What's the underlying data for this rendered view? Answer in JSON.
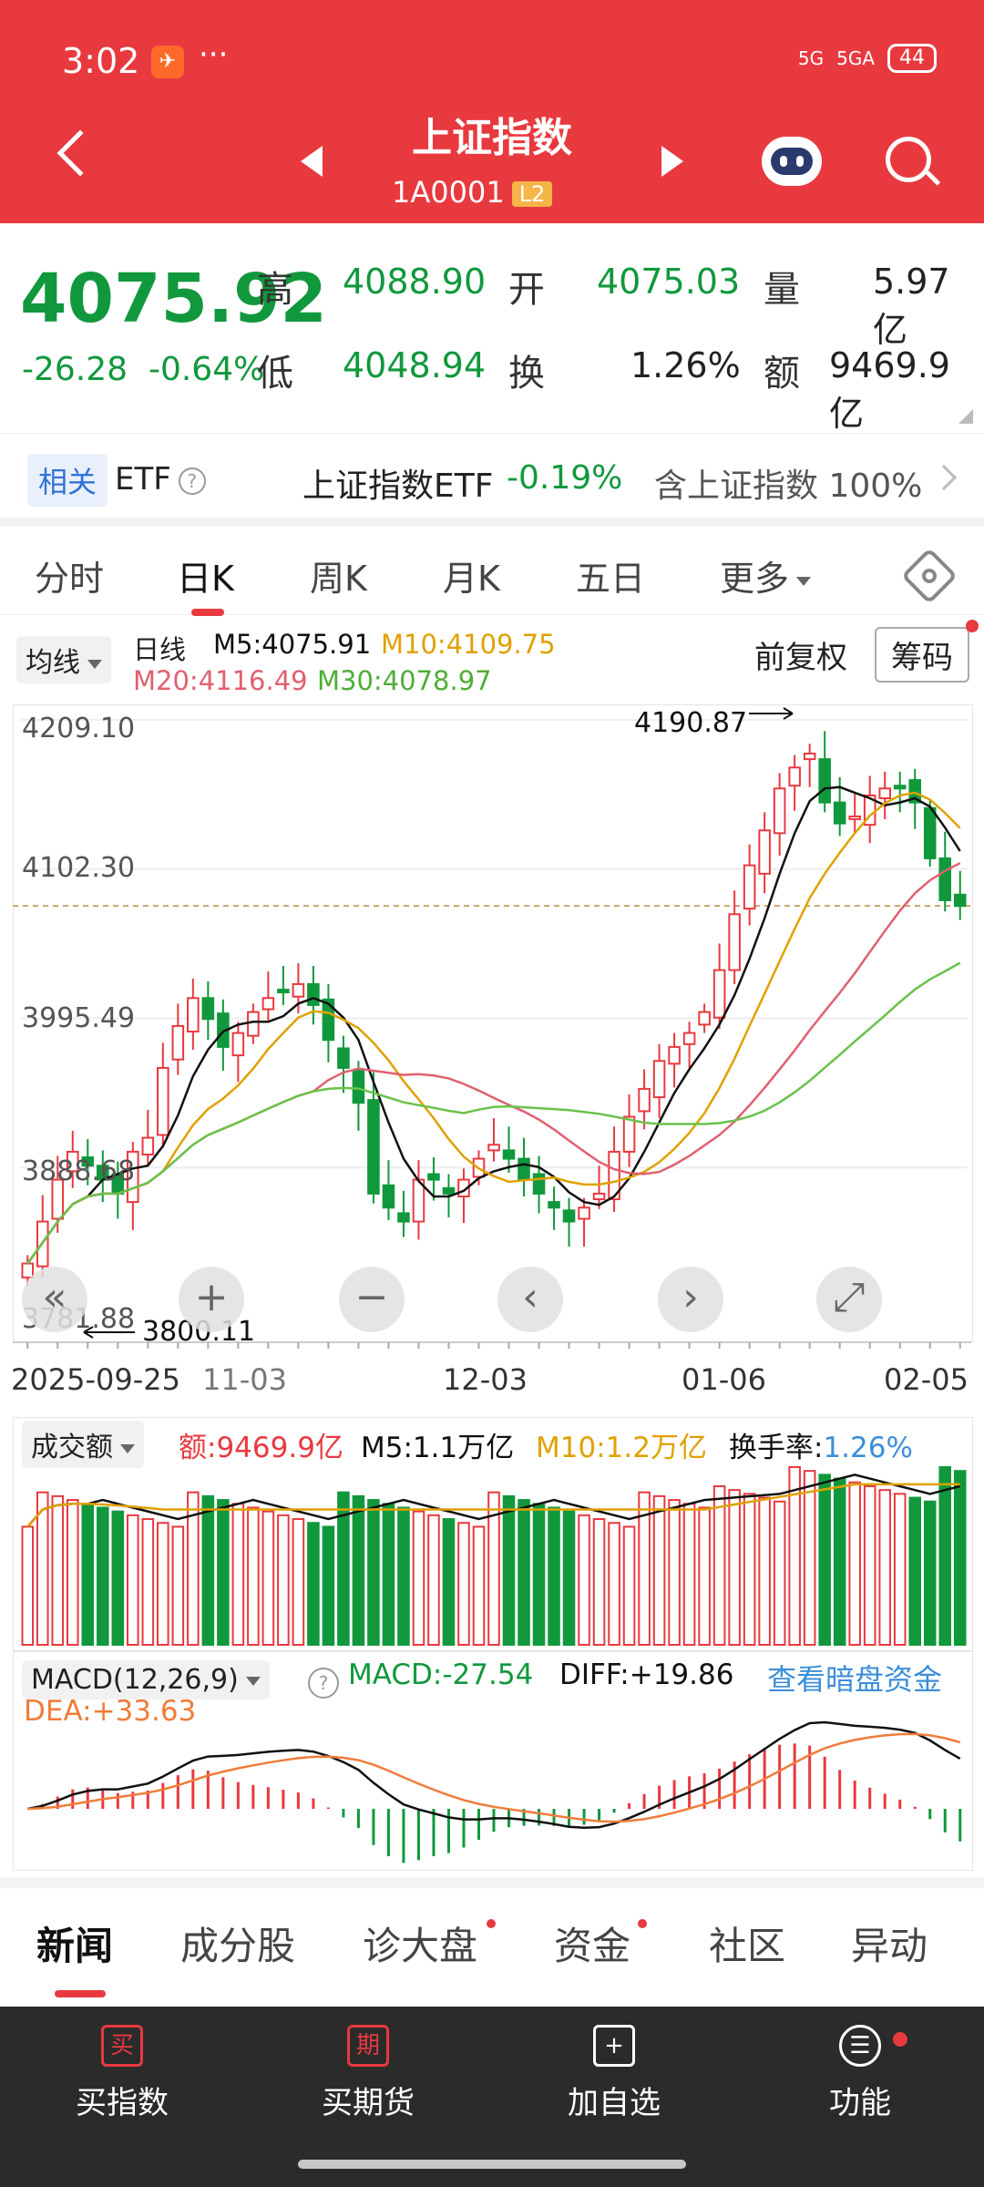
{
  "status": {
    "time": "3:02",
    "app_icon": "✈",
    "dots": "···",
    "signal1": "5G",
    "signal2": "5GA",
    "battery": "44"
  },
  "header": {
    "title": "上证指数",
    "code": "1A0001",
    "level": "L2"
  },
  "quote": {
    "price": "4075.92",
    "change": "-26.28",
    "change_pct": "-0.64%",
    "high_label": "高",
    "high": "4088.90",
    "open_label": "开",
    "open": "4075.03",
    "volume_label": "量",
    "volume": "5.97亿",
    "low_label": "低",
    "low": "4048.94",
    "turnover_label": "换",
    "turnover": "1.26%",
    "amount_label": "额",
    "amount": "9469.9亿"
  },
  "etf": {
    "tag": "相关",
    "label": "ETF",
    "help": "?",
    "name": "上证指数ETF",
    "pct": "-0.19%",
    "holding": "含上证指数 100%"
  },
  "tabs": [
    {
      "label": "分时"
    },
    {
      "label": "日K"
    },
    {
      "label": "周K"
    },
    {
      "label": "月K"
    },
    {
      "label": "五日"
    },
    {
      "label": "更多"
    }
  ],
  "ma": {
    "selector": "均线",
    "line": "日线",
    "m5": "M5:4075.91",
    "m10": "M10:4109.75",
    "m20": "M20:4116.49",
    "m30": "M30:4078.97",
    "adjust": "前复权",
    "chips": "筹码"
  },
  "kchart": {
    "y_ticks": [
      "4209.10",
      "4102.30",
      "3995.49",
      "3888.68",
      "3781.88"
    ],
    "high_note": "4190.87",
    "low_note": "3800.11",
    "dates": [
      "2025-09-25",
      "11-03",
      "12-03",
      "01-06",
      "02-05"
    ],
    "controls": [
      "«",
      "+",
      "−",
      "‹",
      "›",
      "⤢"
    ]
  },
  "volume": {
    "selector": "成交额",
    "amount": "额:9469.9亿",
    "m5": "M5:1.1万亿",
    "m10": "M10:1.2万亿",
    "turnover_label": "换手率:",
    "turnover": "1.26%"
  },
  "macd": {
    "selector": "MACD(12,26,9)",
    "help": "?",
    "macd": "MACD:-27.54",
    "diff": "DIFF:+19.86",
    "dea": "DEA:+33.63",
    "link": "查看暗盘资金"
  },
  "news_tabs": [
    {
      "label": "新闻"
    },
    {
      "label": "成分股"
    },
    {
      "label": "诊大盘"
    },
    {
      "label": "资金"
    },
    {
      "label": "社区"
    },
    {
      "label": "异动"
    }
  ],
  "footer": [
    {
      "icon": "买",
      "label": "买指数"
    },
    {
      "icon": "期",
      "label": "买期货"
    },
    {
      "icon": "+",
      "label": "加自选"
    },
    {
      "icon": "☰",
      "label": "功能"
    }
  ],
  "colors": {
    "up": "#e8393f",
    "down": "#11983d",
    "ma5": "#111111",
    "ma10": "#e0a100",
    "ma20": "#e06070",
    "ma30": "#6ac24a",
    "header": "#e8393f"
  },
  "chart_data": {
    "type": "candlestick",
    "title": "",
    "y_range": [
      3781.88,
      4209.1
    ],
    "x_range": [
      "2025-09-25",
      "2026-02-05"
    ],
    "annotations": [
      {
        "label": "4190.87",
        "type": "max"
      },
      {
        "label": "3800.11",
        "type": "min"
      }
    ],
    "close_approx": [
      3820,
      3850,
      3880,
      3900,
      3890,
      3880,
      3870,
      3900,
      3910,
      3960,
      3990,
      4010,
      3995,
      3975,
      3985,
      4000,
      4010,
      4015,
      4020,
      4005,
      3980,
      3960,
      3935,
      3870,
      3860,
      3850,
      3880,
      3880,
      3870,
      3880,
      3895,
      3905,
      3895,
      3880,
      3870,
      3860,
      3850,
      3860,
      3870,
      3900,
      3925,
      3945,
      3965,
      3975,
      3985,
      4000,
      4030,
      4070,
      4105,
      4130,
      4160,
      4175,
      4185,
      4150,
      4135,
      4140,
      4155,
      4160,
      4160,
      4150,
      4110,
      4080,
      4075.92
    ],
    "volume_trend_trillion": {
      "m5": 1.1,
      "m10": 1.2
    },
    "macd": {
      "macd": -27.54,
      "diff": 19.86,
      "dea": 33.63
    }
  }
}
